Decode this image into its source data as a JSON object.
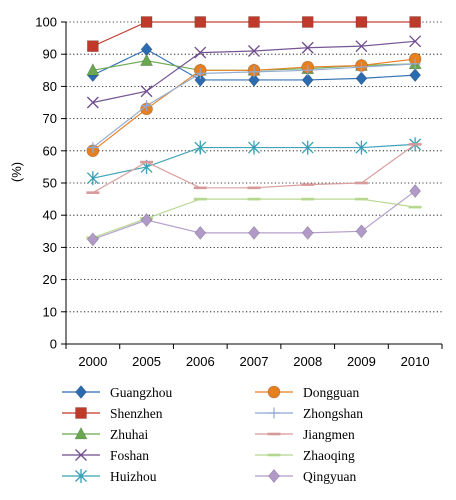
{
  "chart_data": {
    "type": "line",
    "title": "",
    "xlabel": "",
    "ylabel": "(%)",
    "categories": [
      "2000",
      "2005",
      "2006",
      "2007",
      "2008",
      "2009",
      "2010"
    ],
    "ylim": [
      0,
      100
    ],
    "yticks": [
      0,
      10,
      20,
      30,
      40,
      50,
      60,
      70,
      80,
      90,
      100
    ],
    "grid": "horizontal dotted",
    "legend_placement": "bottom, two columns",
    "series": [
      {
        "name": "Guangzhou",
        "marker": "diamond",
        "color": "#2b6cb0",
        "values": [
          83.5,
          91.5,
          82,
          82,
          82,
          82.5,
          83.5
        ]
      },
      {
        "name": "Shenzhen",
        "marker": "square",
        "color": "#c0392b",
        "values": [
          92.5,
          100,
          100,
          100,
          100,
          100,
          100
        ]
      },
      {
        "name": "Zhuhai",
        "marker": "triangle",
        "color": "#6aa84f",
        "values": [
          85,
          88,
          85,
          85,
          85.5,
          86.5,
          87
        ]
      },
      {
        "name": "Foshan",
        "marker": "x",
        "color": "#6e4c8e",
        "values": [
          75,
          78.5,
          90.5,
          91,
          92,
          92.5,
          94
        ]
      },
      {
        "name": "Huizhou",
        "marker": "star",
        "color": "#37a0b5",
        "values": [
          51.5,
          55,
          61,
          61,
          61,
          61,
          62
        ]
      },
      {
        "name": "Dongguan",
        "marker": "circle",
        "color": "#e67e22",
        "values": [
          60,
          73,
          85,
          85,
          86,
          86.5,
          88.5
        ]
      },
      {
        "name": "Zhongshan",
        "marker": "plus",
        "color": "#8fa9d0",
        "values": [
          61,
          74,
          84,
          84.5,
          85,
          86,
          87
        ]
      },
      {
        "name": "Jiangmen",
        "marker": "dash",
        "color": "#d79a9a",
        "values": [
          47,
          56.5,
          48.5,
          48.5,
          49.5,
          50,
          62
        ]
      },
      {
        "name": "Zhaoqing",
        "marker": "dash",
        "color": "#b5d78e",
        "values": [
          33,
          39,
          45,
          45,
          45,
          45,
          42.5
        ]
      },
      {
        "name": "Qingyuan",
        "marker": "diamond",
        "color": "#b19ac8",
        "values": [
          32.5,
          38.5,
          34.5,
          34.5,
          34.5,
          35,
          47.5
        ]
      }
    ]
  }
}
